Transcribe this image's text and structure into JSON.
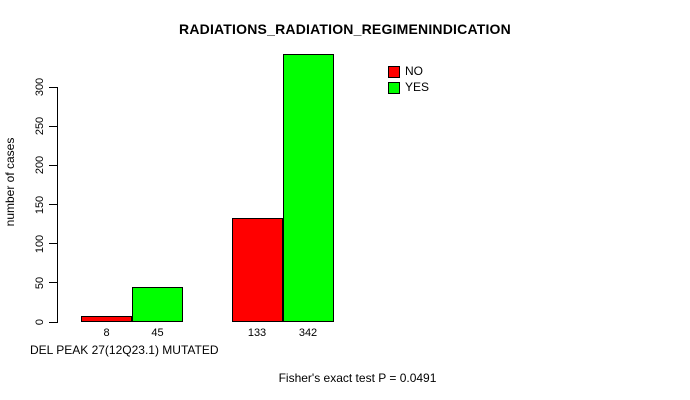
{
  "chart_data": {
    "type": "bar",
    "title": "RADIATIONS_RADIATION_REGIMENINDICATION",
    "xlabel": "DEL PEAK 27(12Q23.1) MUTATED",
    "ylabel": "number of cases",
    "categories": [
      "",
      ""
    ],
    "series": [
      {
        "name": "NO",
        "color": "#FF0000",
        "values": [
          8,
          133
        ]
      },
      {
        "name": "YES",
        "color": "#00FF00",
        "values": [
          45,
          342
        ]
      }
    ],
    "bar_value_labels": [
      8,
      45,
      133,
      342
    ],
    "yticks": [
      0,
      50,
      100,
      150,
      200,
      250,
      300
    ],
    "ylim": [
      0,
      345
    ],
    "grid": false,
    "legend_position": "top-right-inside",
    "annotation": "Fisher's exact test P = 0.0491"
  },
  "colors": {
    "no": "#FF0000",
    "yes": "#00FF00",
    "axis": "#000000",
    "background": "#FFFFFF",
    "text": "#000000"
  }
}
